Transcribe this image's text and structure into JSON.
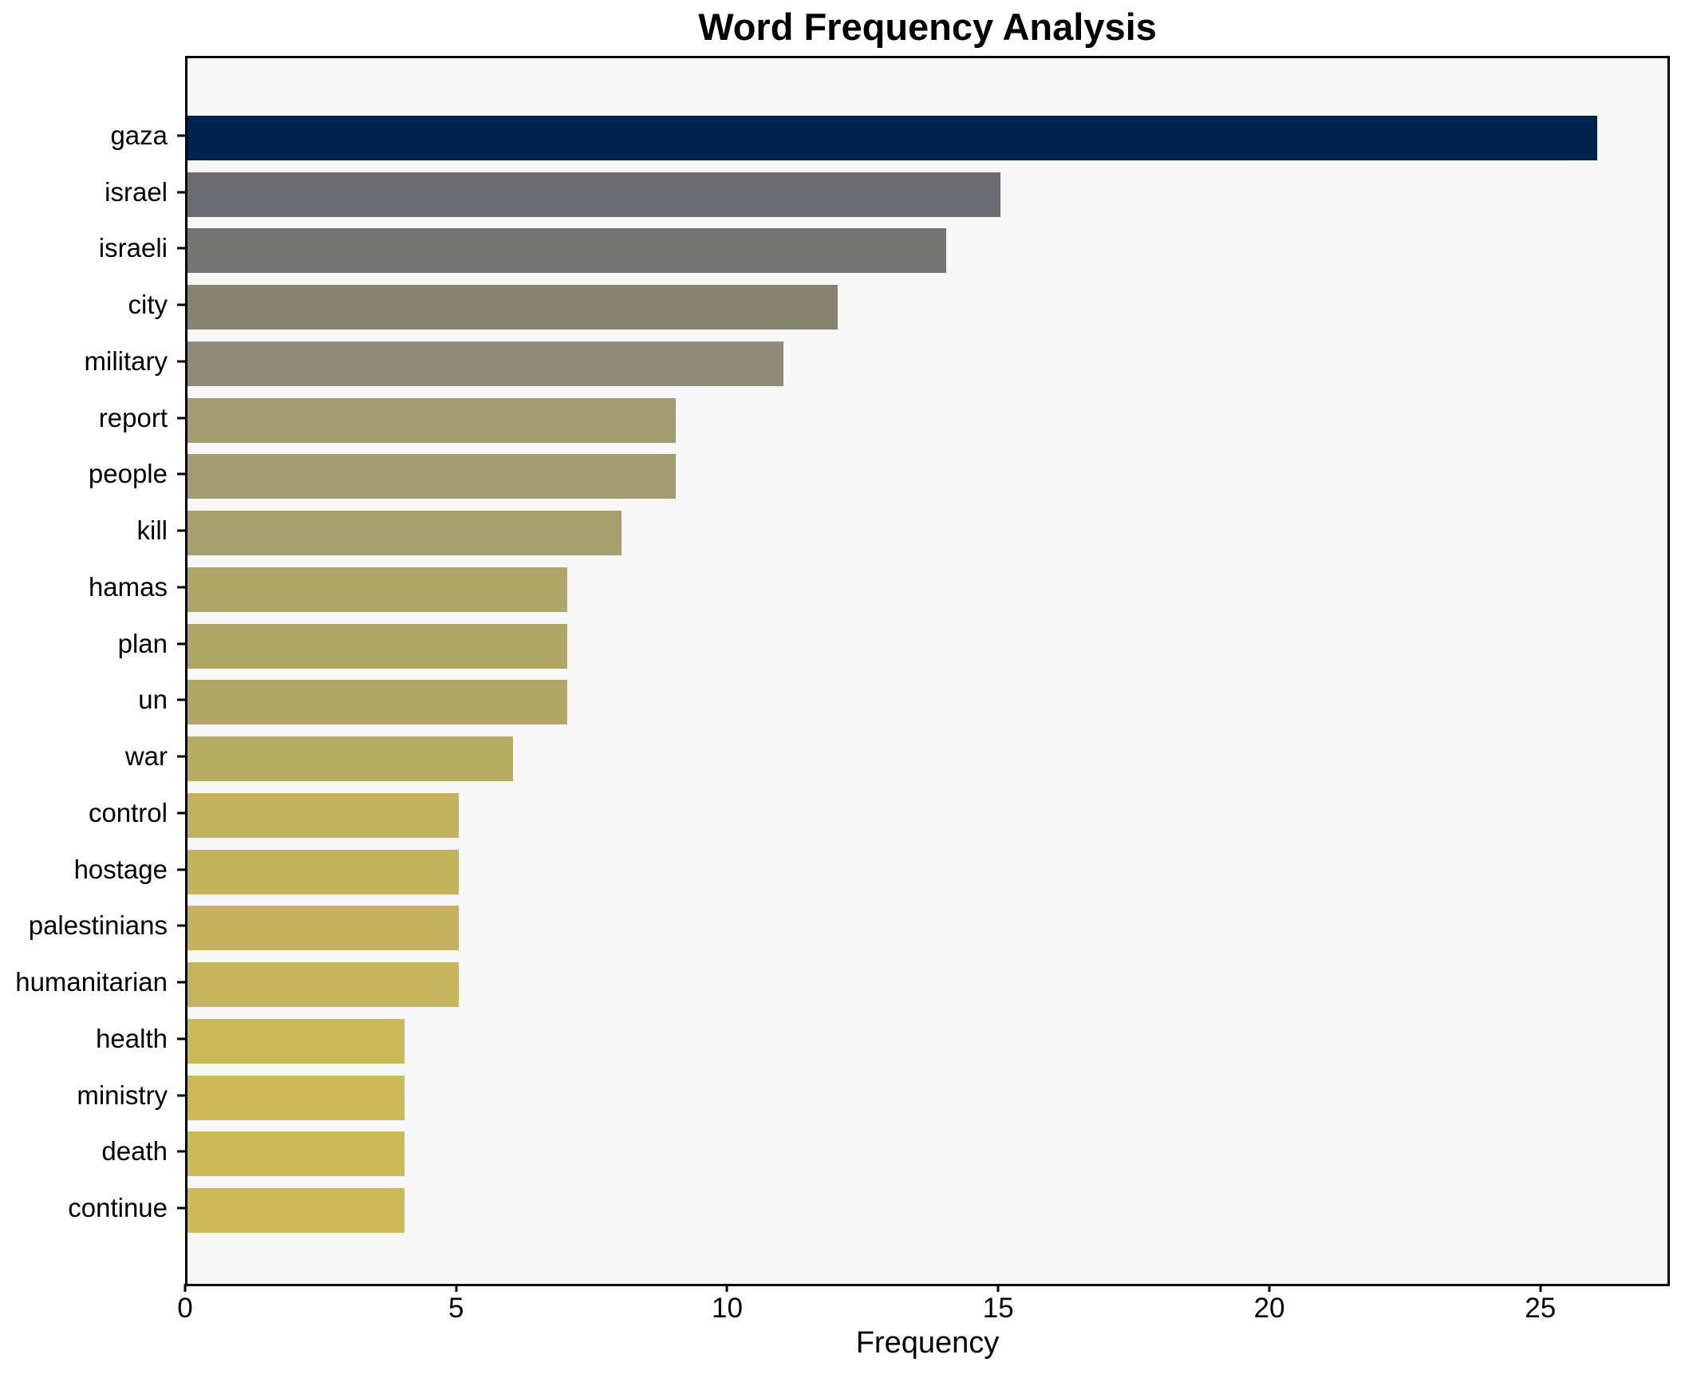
{
  "chart_data": {
    "type": "bar",
    "orientation": "horizontal",
    "title": "Word Frequency Analysis",
    "xlabel": "Frequency",
    "ylabel": "",
    "grid": false,
    "legend": null,
    "xlim": [
      0,
      27.3
    ],
    "xticks": [
      0,
      5,
      10,
      15,
      20,
      25
    ],
    "categories": [
      "gaza",
      "israel",
      "israeli",
      "city",
      "military",
      "report",
      "people",
      "kill",
      "hamas",
      "plan",
      "un",
      "war",
      "control",
      "hostage",
      "palestinians",
      "humanitarian",
      "health",
      "ministry",
      "death",
      "continue"
    ],
    "values": [
      26,
      15,
      14,
      12,
      11,
      9,
      9,
      8,
      7,
      7,
      7,
      6,
      5,
      5,
      5,
      5,
      4,
      4,
      4,
      4
    ],
    "bar_colors": [
      "#00224e",
      "#6a6c72",
      "#747473",
      "#868371",
      "#8e8a77",
      "#a29a71",
      "#a39a70",
      "#a8a06c",
      "#aea666",
      "#afa665",
      "#b0a765",
      "#b8ac61",
      "#c2b25e",
      "#c3b35d",
      "#c4b35c",
      "#c5b45b",
      "#cbb957",
      "#ccb956",
      "#ccba56",
      "#cdba56"
    ],
    "plot_background": "#f7f7f7",
    "figure_background": "#ffffff",
    "text_color": "#000000"
  }
}
